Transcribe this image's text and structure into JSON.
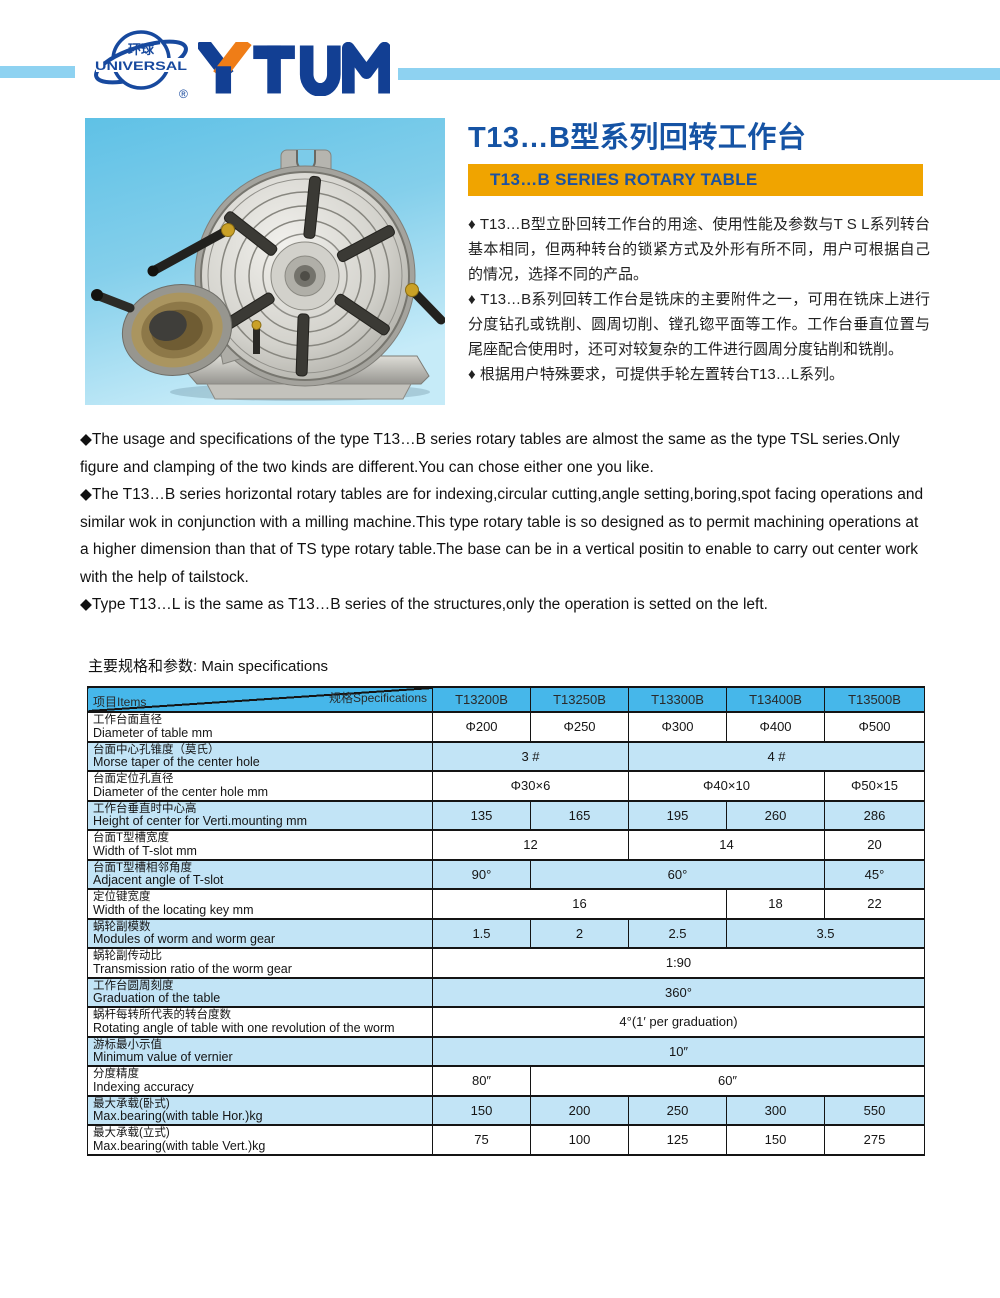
{
  "brand": {
    "globe_cn": "环球",
    "globe_en": "UNIVERSAL",
    "registered": "®",
    "wordmark": "YTUM",
    "colors": {
      "blue": "#17499e",
      "orange": "#ef7d17",
      "sky_bar": "#8ed2f1"
    }
  },
  "header": {
    "title_cn": "T13…B型系列回转工作台",
    "banner_en": "T13…B SERIES ROTARY TABLE",
    "banner_bg": "#f0a400",
    "title_color": "#1553a4"
  },
  "product_image": {
    "name": "rotary-table-photo"
  },
  "description_cn": [
    "♦ T13…B型立卧回转工作台的用途、使用性能及参数与T S L系列转台基本相同，但两种转台的锁紧方式及外形有所不同，用户可根据自己的情况，选择不同的产品。",
    "♦ T13…B系列回转工作台是铣床的主要附件之一，可用在铣床上进行分度钻孔或铣削、圆周切削、镗孔锪平面等工作。工作台垂直位置与尾座配合使用时，还可对较复杂的工件进行圆周分度钻削和铣削。",
    "♦ 根据用户特殊要求，可提供手轮左置转台T13…L系列。"
  ],
  "description_en": [
    "◆The usage and specifications of the type T13…B series rotary tables are almost the same as the type TSL series.Only figure and clamping of the two kinds are different.You can chose either one you like.",
    "◆The T13…B series horizontal rotary tables are for indexing,circular cutting,angle setting,boring,spot facing operations and similar wok in conjunction with a milling machine.This type rotary table is so designed as to permit machining operations at a higher dimension than that of TS type rotary table.The base can be in a vertical positin to enable to carry out center work with the help of tailstock.",
    "◆Type T13…L is the same as T13…B series of the structures,only the operation is setted on the left."
  ],
  "specs": {
    "heading": "主要规格和参数:  Main specifications",
    "corner_top": "规格Specifications",
    "corner_bottom": "项目Items",
    "models": [
      "T13200B",
      "T13250B",
      "T13300B",
      "T13400B",
      "T13500B"
    ],
    "header_bg": "#46b7ea",
    "alt_row_bg": "#c2e4f6",
    "rows": [
      {
        "cn": "工作台面直径",
        "en": "Diameter of table mm",
        "cells": [
          {
            "v": "Φ200",
            "s": 1
          },
          {
            "v": "Φ250",
            "s": 1
          },
          {
            "v": "Φ300",
            "s": 1
          },
          {
            "v": "Φ400",
            "s": 1
          },
          {
            "v": "Φ500",
            "s": 1
          }
        ]
      },
      {
        "cn": "台面中心孔锥度（莫氏）",
        "en": "Morse taper of the center hole",
        "cells": [
          {
            "v": "3 #",
            "s": 2
          },
          {
            "v": "4 #",
            "s": 3
          }
        ]
      },
      {
        "cn": "台面定位孔直径",
        "en": "Diameter of the center hole mm",
        "cells": [
          {
            "v": "Φ30×6",
            "s": 2
          },
          {
            "v": "Φ40×10",
            "s": 2
          },
          {
            "v": "Φ50×15",
            "s": 1
          }
        ]
      },
      {
        "cn": "工作台垂直时中心高",
        "en": "Height of center for Verti.mounting mm",
        "cells": [
          {
            "v": "135",
            "s": 1
          },
          {
            "v": "165",
            "s": 1
          },
          {
            "v": "195",
            "s": 1
          },
          {
            "v": "260",
            "s": 1
          },
          {
            "v": "286",
            "s": 1
          }
        ]
      },
      {
        "cn": "台面T型槽宽度",
        "en": "Width of T-slot mm",
        "cells": [
          {
            "v": "12",
            "s": 2
          },
          {
            "v": "14",
            "s": 2
          },
          {
            "v": "20",
            "s": 1
          }
        ]
      },
      {
        "cn": "台面T型槽相邻角度",
        "en": "Adjacent angle of T-slot",
        "cells": [
          {
            "v": "90°",
            "s": 1
          },
          {
            "v": "60°",
            "s": 3
          },
          {
            "v": "45°",
            "s": 1
          }
        ]
      },
      {
        "cn": "定位键宽度",
        "en": "Width of the locating key mm",
        "cells": [
          {
            "v": "16",
            "s": 3
          },
          {
            "v": "18",
            "s": 1
          },
          {
            "v": "22",
            "s": 1
          }
        ]
      },
      {
        "cn": "蜗轮副模数",
        "en": "Modules of worm and worm gear",
        "cells": [
          {
            "v": "1.5",
            "s": 1
          },
          {
            "v": "2",
            "s": 1
          },
          {
            "v": "2.5",
            "s": 1
          },
          {
            "v": "3.5",
            "s": 2
          }
        ]
      },
      {
        "cn": "蜗轮副传动比",
        "en": "Transmission ratio of the worm gear",
        "cells": [
          {
            "v": "1:90",
            "s": 5
          }
        ]
      },
      {
        "cn": "工作台圆周刻度",
        "en": "Graduation of the table",
        "cells": [
          {
            "v": "360°",
            "s": 5
          }
        ]
      },
      {
        "cn": "蜗杆每转所代表的转台度数",
        "en": "Rotating angle of table with one revolution of the worm",
        "cells": [
          {
            "v": "4°(1′ per graduation)",
            "s": 5
          }
        ]
      },
      {
        "cn": "游标最小示值",
        "en": "Minimum value of vernier",
        "cells": [
          {
            "v": "10″",
            "s": 5
          }
        ]
      },
      {
        "cn": "分度精度",
        "en": "Indexing accuracy",
        "cells": [
          {
            "v": "80″",
            "s": 1
          },
          {
            "v": "60″",
            "s": 4
          }
        ]
      },
      {
        "cn": "最大承载(卧式)",
        "en": "Max.bearing(with table Hor.)kg",
        "cells": [
          {
            "v": "150",
            "s": 1
          },
          {
            "v": "200",
            "s": 1
          },
          {
            "v": "250",
            "s": 1
          },
          {
            "v": "300",
            "s": 1
          },
          {
            "v": "550",
            "s": 1
          }
        ]
      },
      {
        "cn": "最大承载(立式)",
        "en": "Max.bearing(with table Vert.)kg",
        "cells": [
          {
            "v": "75",
            "s": 1
          },
          {
            "v": "100",
            "s": 1
          },
          {
            "v": "125",
            "s": 1
          },
          {
            "v": "150",
            "s": 1
          },
          {
            "v": "275",
            "s": 1
          }
        ]
      }
    ]
  }
}
